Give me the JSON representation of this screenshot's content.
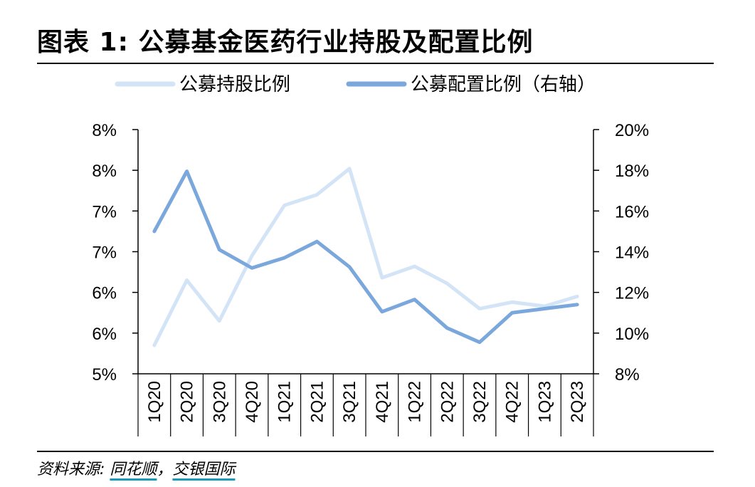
{
  "title": "图表 1: 公募基金医药行业持股及配置比例",
  "source": {
    "prefix": "资料来源: ",
    "items": [
      "同花顺",
      "交银国际"
    ],
    "separator": "，"
  },
  "chart_data": {
    "type": "line",
    "title": "图表 1: 公募基金医药行业持股及配置比例",
    "categories": [
      "1Q20",
      "2Q20",
      "3Q20",
      "4Q20",
      "1Q21",
      "2Q21",
      "3Q21",
      "4Q21",
      "1Q22",
      "2Q22",
      "3Q22",
      "4Q22",
      "1Q23",
      "2Q23"
    ],
    "left_axis": {
      "ylim": [
        5.0,
        8.0
      ],
      "ticks": [
        5.0,
        5.5,
        6.0,
        6.5,
        7.0,
        7.5,
        8.0
      ],
      "tick_labels": [
        "5%",
        "6%",
        "6%",
        "7%",
        "7%",
        "8%",
        "8%"
      ]
    },
    "right_axis": {
      "ylim": [
        8,
        20
      ],
      "ticks": [
        8,
        10,
        12,
        14,
        16,
        18,
        20
      ],
      "tick_labels": [
        "8%",
        "10%",
        "12%",
        "14%",
        "16%",
        "18%",
        "20%"
      ]
    },
    "series": [
      {
        "name": "公募持股比例",
        "axis": "left",
        "color": "#d4e4f7",
        "values": [
          5.35,
          6.15,
          5.65,
          6.45,
          7.07,
          7.2,
          7.52,
          6.18,
          6.32,
          6.11,
          5.8,
          5.88,
          5.83,
          5.95
        ]
      },
      {
        "name": "公募配置比例（右轴）",
        "axis": "right",
        "color": "#7aa7dc",
        "values": [
          15.0,
          17.95,
          14.1,
          13.2,
          13.7,
          14.5,
          13.25,
          11.05,
          11.65,
          10.25,
          9.55,
          11.0,
          11.2,
          11.4
        ]
      }
    ],
    "legend_position": "top",
    "grid": false
  }
}
